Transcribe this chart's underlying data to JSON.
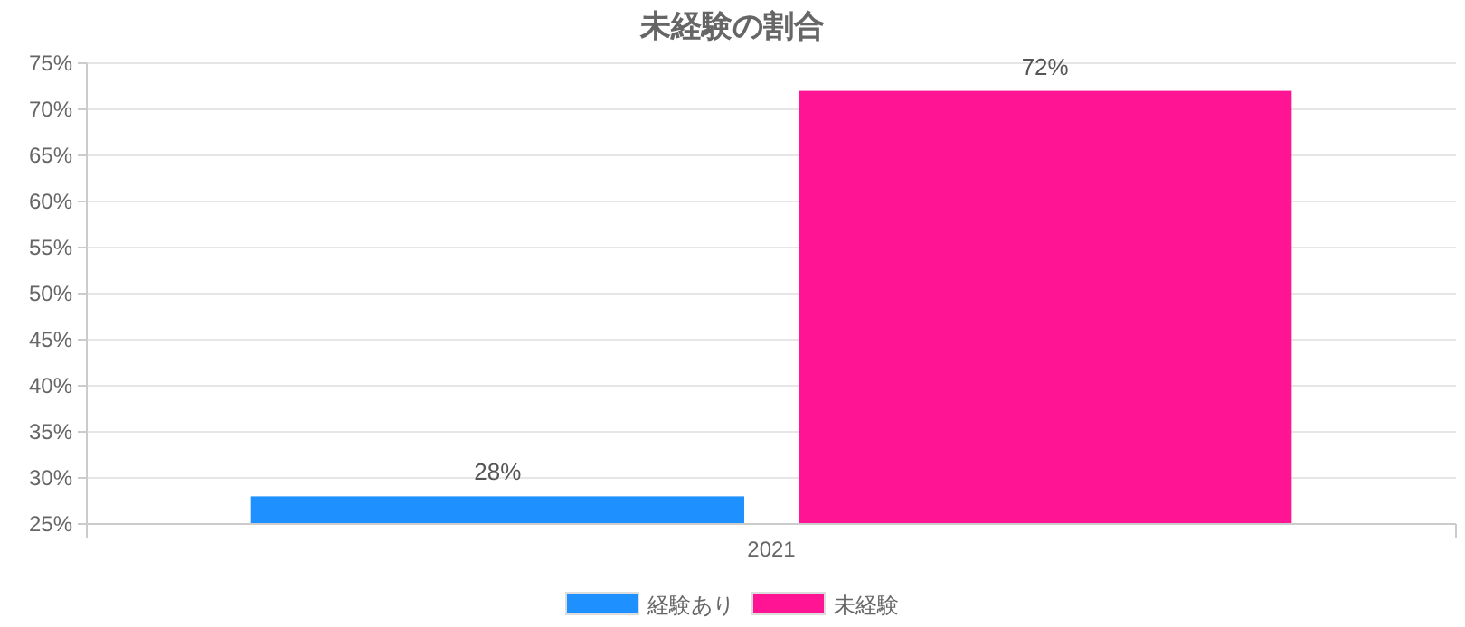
{
  "chart_data": {
    "type": "bar",
    "title": "未経験の割合",
    "categories": [
      "2021"
    ],
    "series": [
      {
        "name": "経験あり",
        "color": "#1e90ff",
        "values": [
          28
        ],
        "value_labels": [
          "28%"
        ]
      },
      {
        "name": "未経験",
        "color": "#ff1493",
        "values": [
          72
        ],
        "value_labels": [
          "72%"
        ]
      }
    ],
    "ylim": [
      25,
      75
    ],
    "yticks": [
      {
        "value": 25,
        "label": "25%"
      },
      {
        "value": 30,
        "label": "30%"
      },
      {
        "value": 35,
        "label": "35%"
      },
      {
        "value": 40,
        "label": "40%"
      },
      {
        "value": 45,
        "label": "45%"
      },
      {
        "value": 50,
        "label": "50%"
      },
      {
        "value": 55,
        "label": "55%"
      },
      {
        "value": 60,
        "label": "60%"
      },
      {
        "value": 65,
        "label": "65%"
      },
      {
        "value": 70,
        "label": "70%"
      },
      {
        "value": 75,
        "label": "75%"
      }
    ],
    "grid": "y",
    "legend": "bottom"
  }
}
